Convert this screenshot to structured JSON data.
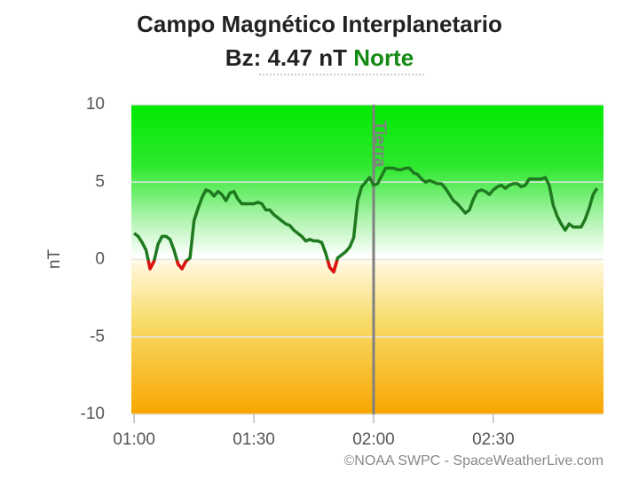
{
  "chart_data": {
    "type": "line",
    "title": "Campo Magnético Interplanetario",
    "subtitle": "Bz: 4.47 nT",
    "status": "Norte",
    "status_color": "#138a13",
    "y_label": "nT",
    "credit": "©NOAA SWPC - SpaceWeatherLive.com",
    "xlim": [
      59.3,
      177.6
    ],
    "xticks": [
      {
        "value": 60,
        "label": "01:00"
      },
      {
        "value": 90,
        "label": "01:30"
      },
      {
        "value": 120,
        "label": "02:00"
      },
      {
        "value": 150,
        "label": "02:30"
      }
    ],
    "ylim": [
      -10,
      10
    ],
    "yticks": [
      -10,
      -5,
      0,
      5,
      10
    ],
    "grid": true,
    "annotations": [
      {
        "text": "Tierra",
        "x": 120,
        "color": "#808080"
      }
    ],
    "negative_color": "#e01010",
    "series": [
      {
        "name": "Bz",
        "color": "#1f7a1f",
        "x": [
          60,
          61,
          62,
          63,
          64,
          65,
          66,
          67,
          68,
          69,
          70,
          71,
          72,
          73,
          74,
          75,
          76,
          77,
          78,
          79,
          80,
          81,
          82,
          83,
          84,
          85,
          86,
          87,
          88,
          89,
          90,
          91,
          92,
          93,
          94,
          95,
          96,
          97,
          98,
          99,
          100,
          101,
          102,
          103,
          104,
          105,
          106,
          107,
          108,
          109,
          110,
          111,
          112,
          113,
          114,
          115,
          116,
          117,
          118,
          119,
          120,
          121,
          122,
          123,
          124,
          125,
          126,
          127,
          128,
          129,
          130,
          131,
          132,
          133,
          134,
          135,
          136,
          137,
          138,
          139,
          140,
          141,
          142,
          143,
          144,
          145,
          146,
          147,
          148,
          149,
          150,
          151,
          152,
          153,
          154,
          155,
          156,
          157,
          158,
          159,
          160,
          161,
          162,
          163,
          164,
          165,
          166,
          167,
          168,
          169,
          170,
          171,
          172,
          173,
          174,
          175,
          176
        ],
        "values": [
          1.7,
          1.5,
          1.1,
          0.6,
          -0.6,
          -0.1,
          1.0,
          1.5,
          1.5,
          1.3,
          0.6,
          -0.3,
          -0.6,
          -0.1,
          0.1,
          2.5,
          3.3,
          4.0,
          4.5,
          4.4,
          4.1,
          4.4,
          4.2,
          3.8,
          4.3,
          4.4,
          3.9,
          3.6,
          3.6,
          3.6,
          3.6,
          3.7,
          3.6,
          3.2,
          3.2,
          2.9,
          2.7,
          2.5,
          2.3,
          2.2,
          1.9,
          1.7,
          1.5,
          1.2,
          1.3,
          1.2,
          1.2,
          1.1,
          0.4,
          -0.5,
          -0.8,
          0.1,
          0.3,
          0.5,
          0.8,
          1.4,
          3.8,
          4.7,
          5.0,
          5.3,
          4.8,
          4.9,
          5.4,
          5.9,
          5.9,
          5.9,
          5.8,
          5.8,
          5.9,
          5.9,
          5.6,
          5.5,
          5.2,
          5.0,
          5.1,
          5.0,
          4.9,
          4.9,
          4.6,
          4.2,
          3.8,
          3.6,
          3.3,
          3.0,
          3.2,
          3.9,
          4.4,
          4.5,
          4.4,
          4.2,
          4.5,
          4.7,
          4.8,
          4.6,
          4.8,
          4.9,
          4.9,
          4.7,
          4.8,
          5.2,
          5.2,
          5.2,
          5.2,
          5.3,
          4.8,
          3.5,
          2.8,
          2.3,
          1.9,
          2.3,
          2.1,
          2.1,
          2.1,
          2.6,
          3.3,
          4.2,
          4.6
        ]
      }
    ]
  }
}
